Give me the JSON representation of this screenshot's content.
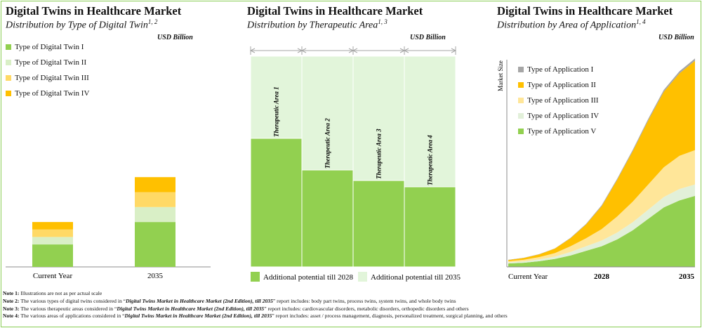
{
  "colors": {
    "type_i": "#92d050",
    "type_ii": "#d9efc6",
    "type_iii": "#ffd966",
    "type_iv": "#ffc000",
    "app_i": "#a6a6a6",
    "app_ii": "#ffc000",
    "app_iii": "#ffe699",
    "app_iv": "#e2f0d9",
    "app_v": "#92d050",
    "bar_2028": "#92d050",
    "bar_2035": "#e2f5da",
    "border": "#8ccf57",
    "arrow": "#a6a6a6"
  },
  "panel1": {
    "title": "Digital Twins in Healthcare Market",
    "subtitle": "Distribution by Type of Digital Twin",
    "subtitle_sup": "1, 2",
    "unit": "USD Billion"
  },
  "panel2": {
    "title": "Digital Twins in Healthcare Market",
    "subtitle": "Distribution by Therapeutic Area",
    "subtitle_sup": "1, 3",
    "unit": "USD Billion"
  },
  "panel3": {
    "title": "Digital Twins in Healthcare Market",
    "subtitle": "Distribution by Area of Application",
    "subtitle_sup": "1, 4",
    "unit": "USD Billion"
  },
  "chart_data": [
    {
      "type": "bar",
      "stacked": true,
      "categories": [
        "Current Year",
        "2035"
      ],
      "series": [
        {
          "name": "Type of Digital Twin I",
          "values": [
            15,
            30
          ]
        },
        {
          "name": "Type of Digital Twin II",
          "values": [
            5,
            10
          ]
        },
        {
          "name": "Type of Digital Twin III",
          "values": [
            5,
            10
          ]
        },
        {
          "name": "Type of Digital Twin IV",
          "values": [
            5,
            10
          ]
        }
      ],
      "legend": "top-left",
      "grid": false
    },
    {
      "type": "bar",
      "stacked": true,
      "categories": [
        "Therapeutic Area 1",
        "Therapeutic Area 2",
        "Therapeutic Area 3",
        "Therapeutic Area 4"
      ],
      "series": [
        {
          "name": "Additional potential till 2028",
          "values": [
            61,
            46,
            41,
            38
          ]
        },
        {
          "name": "Additional potential till 2035",
          "values": [
            39,
            54,
            59,
            62
          ]
        }
      ],
      "legend": "bottom",
      "grid": false
    },
    {
      "type": "area",
      "stacked": true,
      "ylabel": "Market Size",
      "x_labels": [
        "Current Year",
        "2028",
        "2035"
      ],
      "series": [
        {
          "name": "Type of Application I",
          "values": [
            0.1,
            0.1,
            0.1,
            0.1,
            0.2,
            0.3,
            0.4,
            0.5,
            0.6,
            0.7,
            0.8,
            0.9,
            1.0
          ]
        },
        {
          "name": "Type of Application II",
          "values": [
            0.5,
            0.8,
            1.2,
            2.0,
            3.5,
            6.0,
            10.0,
            16.0,
            22.0,
            28.0,
            33.0,
            36.0,
            39.0
          ]
        },
        {
          "name": "Type of Application III",
          "values": [
            0.5,
            0.7,
            1.0,
            1.5,
            2.5,
            3.5,
            5.0,
            7.0,
            9.0,
            11.0,
            13.0,
            14.5,
            15.0
          ]
        },
        {
          "name": "Type of Application IV",
          "values": [
            0.5,
            0.6,
            0.8,
            1.0,
            1.5,
            2.0,
            2.5,
            3.0,
            3.5,
            4.0,
            4.5,
            5.0,
            5.0
          ]
        },
        {
          "name": "Type of Application V",
          "values": [
            1.5,
            1.8,
            2.5,
            3.5,
            5.0,
            7.0,
            9.0,
            12.0,
            16.0,
            21.0,
            26.0,
            29.0,
            31.0
          ]
        }
      ],
      "legend": "top-left",
      "grid": false
    }
  ],
  "notes": [
    {
      "label": "Note 1:",
      "text": "Illustrations are not as per actual scale",
      "em": "",
      "after": ""
    },
    {
      "label": "Note 2:",
      "text": "The various types of digital twins considered in “",
      "em": "Digital Twins Market in Healthcare Market (2nd Edition), till 2035",
      "after": "” report includes: body part twins, process twins, system twins, and whole body twins"
    },
    {
      "label": "Note 3:",
      "text": "The various therapeutic areas considered in “",
      "em": "Digital Twins Market in Healthcare Market (2nd Edition), till 2035",
      "after": "” report includes: cardiovascular disorders, metabolic disorders, orthopedic disorders and others"
    },
    {
      "label": "Note 4:",
      "text": "The various areas of applications considered in “",
      "em": "Digital Twins Market in Healthcare Market (2nd Edition), till 2035",
      "after": "” report includes: asset / process management, diagnosis, personalized treatment, surgical planning, and others"
    }
  ]
}
